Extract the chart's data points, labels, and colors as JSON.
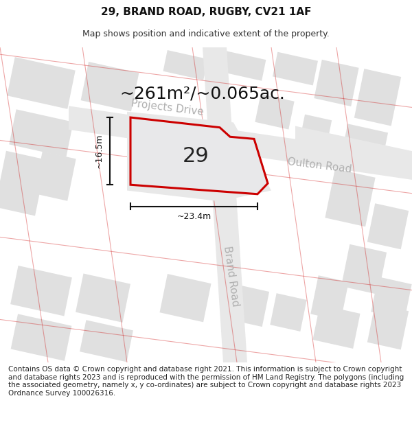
{
  "title_line1": "29, BRAND ROAD, RUGBY, CV21 1AF",
  "title_line2": "Map shows position and indicative extent of the property.",
  "area_label": "~261m²/~0.065ac.",
  "number_label": "29",
  "dim_height": "~16.5m",
  "dim_width": "~23.4m",
  "street_projects_drive": "Projects Drive",
  "street_oulton_road": "Oulton Road",
  "street_brand_road": "Brand Road",
  "copyright_text": "Contains OS data © Crown copyright and database right 2021. This information is subject to Crown copyright and database rights 2023 and is reproduced with the permission of HM Land Registry. The polygons (including the associated geometry, namely x, y co-ordinates) are subject to Crown copyright and database rights 2023 Ordnance Survey 100026316.",
  "bg_color": "#ffffff",
  "map_bg": "#f5f5f5",
  "block_color": "#e0e0e0",
  "road_line_color": "#c8c8c8",
  "red_line_color": "#cc0000",
  "property_fill": "#e8e8e8",
  "dim_line_color": "#111111",
  "street_label_color": "#b0b0b0",
  "title_fontsize": 11,
  "subtitle_fontsize": 9,
  "area_fontsize": 18,
  "number_fontsize": 22,
  "dim_fontsize": 9,
  "street_fontsize": 11,
  "copyright_fontsize": 7.5
}
